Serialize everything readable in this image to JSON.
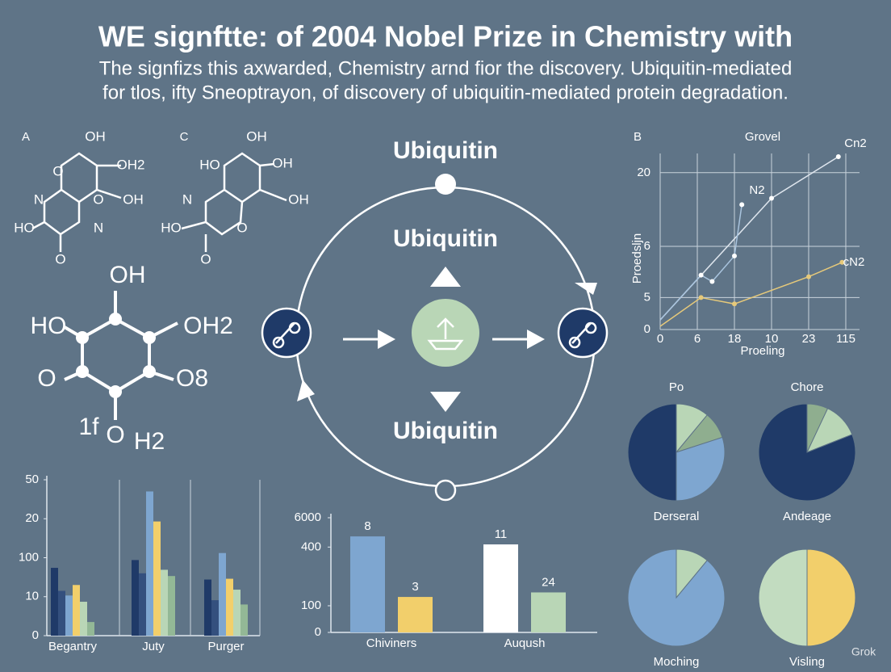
{
  "header": {
    "title": "WE signftte: of 2004 Nobel Prize in Chemistry with",
    "subtitle": [
      "The signfizs this axwarded, Chemistry arnd fior the  discovery. Ubiquitin-mediated",
      "for  tlos, ifty Sneoptrayon, of discovery of ubiquitin-mediated protein degradation."
    ]
  },
  "molecules": [
    {
      "label": "A",
      "atoms": [
        "OH",
        "OH2",
        "O",
        "N",
        "O",
        "OH",
        "HO",
        "N",
        "O"
      ]
    },
    {
      "label": "C",
      "atoms": [
        "OH",
        "HO",
        "OH",
        "N",
        "OH",
        "HO",
        "O",
        "O"
      ]
    },
    {
      "atoms": [
        "OH",
        "HO",
        "OH2",
        "O",
        "O8",
        "1f",
        "O",
        "H2"
      ]
    }
  ],
  "cycle": {
    "labels": [
      "Ubiquitin",
      "Ubiquitin",
      "Ubiquitin"
    ]
  },
  "watermark": "Grok",
  "chart_data": [
    {
      "type": "line",
      "label": "B",
      "title": "Grovel",
      "x_label": "Proeling",
      "y_label": "Proedsljn",
      "xlim": [
        0,
        5.37
      ],
      "ylim": [
        0,
        5.5
      ],
      "grid": true,
      "xticks": [
        0,
        {
          "value": 1,
          "label": "6"
        },
        {
          "value": 2,
          "label": "18"
        },
        {
          "value": 3,
          "label": "10"
        },
        {
          "value": 4,
          "label": "23"
        },
        {
          "value": 5,
          "label": "115"
        }
      ],
      "yticks": [
        0,
        {
          "value": 1,
          "label": "5"
        },
        {
          "value": 2.6,
          "label": "6"
        },
        {
          "value": 4.9,
          "label": "20"
        }
      ],
      "series": [
        {
          "name": "Cn2",
          "color": "#dfe6ee",
          "x": [
            0,
            3.0,
            4.8
          ],
          "values": [
            0.3,
            4.1,
            5.4
          ]
        },
        {
          "name": "N2",
          "color": "#a9c4de",
          "x": [
            0,
            1.1,
            1.4,
            2.0,
            2.2
          ],
          "values": [
            0.3,
            1.7,
            1.5,
            2.3,
            3.9
          ]
        },
        {
          "name": "cN2",
          "color": "#e6c97a",
          "x": [
            0,
            1.1,
            2.0,
            4.0,
            4.9
          ],
          "values": [
            0.1,
            1.0,
            0.8,
            1.65,
            2.1
          ]
        }
      ]
    },
    {
      "type": "bar",
      "categories": [
        "Begantry",
        "Juty",
        "Purger"
      ],
      "ylim": [
        0,
        4.0
      ],
      "yticks": [
        0,
        {
          "value": 1,
          "label": "10"
        },
        {
          "value": 2,
          "label": "100"
        },
        {
          "value": 3,
          "label": "20"
        },
        {
          "value": 4,
          "label": "50"
        }
      ],
      "series": [
        {
          "color": "#1f3a68",
          "values": [
            1.74,
            1.94,
            1.44
          ]
        },
        {
          "color": "#34507e",
          "values": [
            1.15,
            1.6,
            0.91
          ]
        },
        {
          "color": "#7ea6d0",
          "values": [
            1.03,
            3.7,
            2.12
          ]
        },
        {
          "color": "#f2cf6b",
          "values": [
            1.3,
            2.93,
            1.46
          ]
        },
        {
          "color": "#b9d6b6",
          "values": [
            0.87,
            1.69,
            1.18
          ]
        },
        {
          "color": "#93b896",
          "values": [
            0.35,
            1.53,
            0.8
          ]
        }
      ]
    },
    {
      "type": "bar",
      "categories": [
        "Chiviners",
        "Auqush"
      ],
      "ylim": [
        0,
        4.3
      ],
      "yticks": [
        0,
        {
          "value": 1,
          "label": "100"
        },
        {
          "value": 3.2,
          "label": "400"
        },
        {
          "value": 4.3,
          "label": "6000"
        }
      ],
      "annotations": [
        "8",
        "3",
        "11",
        "24"
      ],
      "series": [
        {
          "colors": [
            "#7ea6d0",
            "#ffffff"
          ],
          "values": [
            3.6,
            3.3
          ]
        },
        {
          "colors": [
            "#f2cf6b",
            "#b9d6b6"
          ],
          "values": [
            1.33,
            1.5
          ]
        }
      ]
    },
    {
      "type": "pie",
      "title": "Po",
      "caption": "Derseral",
      "values": [
        11,
        9,
        30,
        50
      ],
      "colors": [
        "#b9d6b6",
        "#8fae8f",
        "#7ea6d0",
        "#1f3a68"
      ]
    },
    {
      "type": "pie",
      "title": "Chore",
      "caption": "Andeage",
      "values": [
        7,
        12,
        81
      ],
      "colors": [
        "#8fae8f",
        "#b9d6b6",
        "#1f3a68"
      ]
    },
    {
      "type": "pie",
      "caption": "Moching",
      "values": [
        11,
        89
      ],
      "colors": [
        "#b9d6b6",
        "#7ea6d0"
      ]
    },
    {
      "type": "pie",
      "caption": "Visling",
      "values": [
        50,
        50
      ],
      "colors": [
        "#f2cf6b",
        "#c2dcc0"
      ]
    }
  ]
}
